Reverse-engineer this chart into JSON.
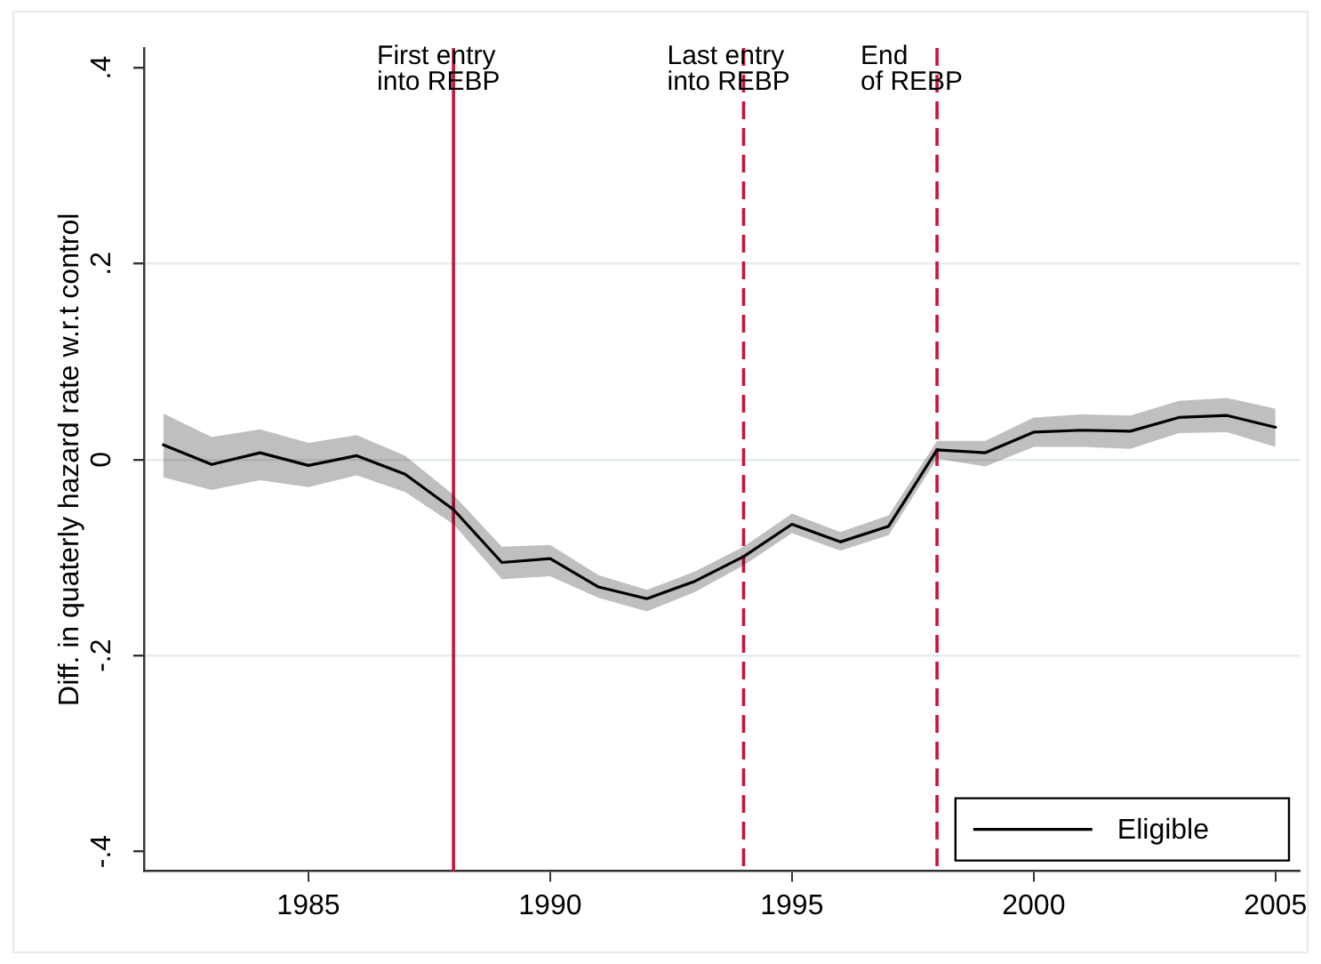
{
  "chart_data": {
    "type": "line",
    "ylabel": "Diff. in quaterly hazard rate w.r.t control",
    "x": [
      1982,
      1983,
      1984,
      1985,
      1986,
      1987,
      1988,
      1989,
      1990,
      1991,
      1992,
      1993,
      1994,
      1995,
      1996,
      1997,
      1998,
      1999,
      2000,
      2001,
      2002,
      2003,
      2004,
      2005
    ],
    "series": [
      {
        "name": "Eligible",
        "color": "#000000",
        "values": [
          0.015,
          -0.005,
          0.007,
          -0.006,
          0.004,
          -0.015,
          -0.051,
          -0.105,
          -0.101,
          -0.13,
          -0.142,
          -0.124,
          -0.099,
          -0.066,
          -0.084,
          -0.068,
          0.01,
          0.007,
          0.028,
          0.03,
          0.029,
          0.043,
          0.045,
          0.033
        ],
        "lower": [
          -0.018,
          -0.031,
          -0.021,
          -0.028,
          -0.016,
          -0.033,
          -0.066,
          -0.122,
          -0.119,
          -0.141,
          -0.155,
          -0.135,
          -0.108,
          -0.075,
          -0.093,
          -0.077,
          0.001,
          -0.007,
          0.013,
          0.013,
          0.011,
          0.027,
          0.028,
          0.013
        ],
        "upper": [
          0.047,
          0.023,
          0.031,
          0.017,
          0.025,
          0.004,
          -0.036,
          -0.089,
          -0.087,
          -0.118,
          -0.133,
          -0.114,
          -0.089,
          -0.055,
          -0.074,
          -0.057,
          0.019,
          0.019,
          0.043,
          0.046,
          0.045,
          0.06,
          0.063,
          0.052
        ]
      }
    ],
    "xlim": [
      1981.6,
      2005.5
    ],
    "xticks": [
      1985,
      1990,
      1995,
      2000,
      2005
    ],
    "ylim": [
      -0.42,
      0.42
    ],
    "yticks": [
      {
        "value": -0.4,
        "label": "-.4"
      },
      {
        "value": -0.2,
        "label": "-.2"
      },
      {
        "value": 0,
        "label": "0"
      },
      {
        "value": 0.2,
        "label": ".2"
      },
      {
        "value": 0.4,
        "label": ".4"
      }
    ],
    "grid": "y",
    "legend": "bottom right",
    "ref_lines": [
      {
        "axis": "x",
        "value": 1988,
        "label": "First entry\ninto REBP",
        "color": "#c8143c",
        "line_style": "solid"
      },
      {
        "axis": "x",
        "value": 1994,
        "label": "Last entry\ninto REBP",
        "color": "#c8143c",
        "line_style": "dashed"
      },
      {
        "axis": "x",
        "value": 1998,
        "label": "End\nof REBP",
        "color": "#c8143c",
        "line_style": "dashed"
      }
    ]
  }
}
